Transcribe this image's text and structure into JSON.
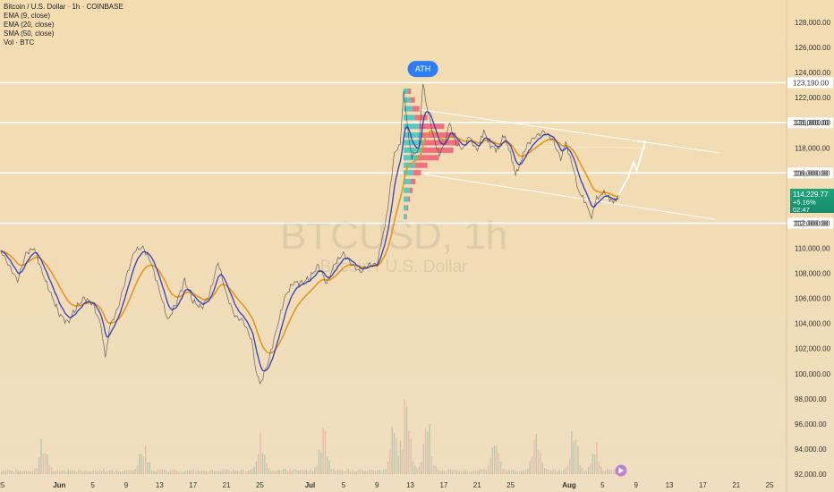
{
  "legend": {
    "title": "Bitcoin / U.S. Dollar · 1h · COINBASE",
    "ema9": "EMA (9, close)",
    "ema20": "EMA (20, close)",
    "sma50": "SMA (50, close)",
    "vol": "Vol · BTC"
  },
  "watermark": {
    "symbol": "BTCUSD, 1h",
    "name": "Bitcoin / U.S. Dollar"
  },
  "ath_label": "ATH",
  "price_tag": {
    "price": "114,229.77",
    "change": "+5.16%",
    "countdown": "02:47"
  },
  "levels": [
    {
      "value": 123190,
      "label": "123,190.00"
    },
    {
      "value": 120000,
      "label": "120,000.00"
    },
    {
      "value": 116000,
      "label": "116,000.00"
    },
    {
      "value": 112000,
      "label": "112,000.00"
    }
  ],
  "colors": {
    "background": "#f3dcb0",
    "price_line": "#3a3a3a",
    "ema9": "#2f3fc8",
    "ema20": "#e8951c",
    "level_line": "#ffffff",
    "profile_cyan": "#2ec4c4",
    "profile_red": "#ef4c6a",
    "ath_badge": "#2e7cf6",
    "price_tag": "#1e9e78"
  },
  "chart_data": {
    "type": "line",
    "title": "Bitcoin / U.S. Dollar · 1h · COINBASE",
    "xlabel": "",
    "ylabel": "",
    "ylim": [
      91000,
      129000
    ],
    "y_ticks": [
      92000,
      94000,
      96000,
      98000,
      100000,
      102000,
      104000,
      106000,
      108000,
      110000,
      112000,
      114000,
      116000,
      118000,
      120000,
      122000,
      124000,
      126000,
      128000
    ],
    "y_tick_labels": [
      "92,000.00",
      "94,000.00",
      "96,000.00",
      "98,000.00",
      "100,000.00",
      "102,000.00",
      "104,000.00",
      "106,000.00",
      "108,000.00",
      "110,000.00",
      "112,000.00",
      "114,000.00",
      "116,000.00",
      "118,000.00",
      "120,000.00",
      "122,000.00",
      "124,000.00",
      "126,000.00",
      "128,000.00"
    ],
    "x_ticks": [
      "25",
      "Jun",
      "5",
      "9",
      "13",
      "17",
      "21",
      "25",
      "Jul",
      "5",
      "9",
      "13",
      "17",
      "21",
      "25",
      "Aug",
      "5",
      "9",
      "13",
      "17",
      "21",
      "25"
    ],
    "x_tick_days": [
      -7,
      0,
      4,
      8,
      12,
      16,
      20,
      24,
      30,
      34,
      38,
      42,
      46,
      50,
      54,
      61,
      65,
      69,
      73,
      77,
      81,
      85
    ],
    "xlim_days": [
      -7.1,
      86.7
    ],
    "price_path": [
      [
        -7,
        109800
      ],
      [
        -6,
        108600
      ],
      [
        -5,
        107400
      ],
      [
        -4,
        109600
      ],
      [
        -3,
        110000
      ],
      [
        -2,
        108000
      ],
      [
        -1,
        106300
      ],
      [
        0,
        104800
      ],
      [
        1,
        104000
      ],
      [
        2,
        105300
      ],
      [
        3,
        106000
      ],
      [
        4,
        105600
      ],
      [
        5,
        103800
      ],
      [
        5.5,
        101200
      ],
      [
        6,
        103700
      ],
      [
        7,
        105200
      ],
      [
        8,
        107700
      ],
      [
        9,
        109800
      ],
      [
        10,
        110100
      ],
      [
        11,
        108800
      ],
      [
        12,
        106600
      ],
      [
        13,
        104200
      ],
      [
        14,
        105700
      ],
      [
        15,
        107400
      ],
      [
        16,
        105800
      ],
      [
        17,
        105200
      ],
      [
        18,
        106400
      ],
      [
        19,
        108900
      ],
      [
        20,
        106300
      ],
      [
        21,
        104600
      ],
      [
        22,
        104200
      ],
      [
        23,
        102700
      ],
      [
        23.5,
        100400
      ],
      [
        24,
        99100
      ],
      [
        25,
        100900
      ],
      [
        26,
        103600
      ],
      [
        27,
        106100
      ],
      [
        28,
        107300
      ],
      [
        29,
        107200
      ],
      [
        30,
        107700
      ],
      [
        31,
        108600
      ],
      [
        32,
        107200
      ],
      [
        33,
        108800
      ],
      [
        34,
        109600
      ],
      [
        35,
        108700
      ],
      [
        36,
        108100
      ],
      [
        37,
        108700
      ],
      [
        38,
        108700
      ],
      [
        38.6,
        110600
      ],
      [
        39.3,
        113100
      ],
      [
        40.1,
        117700
      ],
      [
        40.8,
        118100
      ],
      [
        41.2,
        122800
      ],
      [
        41.7,
        119300
      ],
      [
        42.2,
        117300
      ],
      [
        43,
        117900
      ],
      [
        43.5,
        123100
      ],
      [
        44,
        121300
      ],
      [
        44.8,
        118800
      ],
      [
        45.5,
        117400
      ],
      [
        46,
        118200
      ],
      [
        46.7,
        119900
      ],
      [
        47.5,
        118300
      ],
      [
        48.3,
        117900
      ],
      [
        49,
        118900
      ],
      [
        50,
        117800
      ],
      [
        50.8,
        119300
      ],
      [
        51.6,
        118200
      ],
      [
        52.4,
        117800
      ],
      [
        53.2,
        119000
      ],
      [
        54,
        117600
      ],
      [
        54.6,
        115800
      ],
      [
        55.2,
        116900
      ],
      [
        56,
        118300
      ],
      [
        57,
        118900
      ],
      [
        58,
        119300
      ],
      [
        59,
        118700
      ],
      [
        60,
        117100
      ],
      [
        60.6,
        118400
      ],
      [
        61.4,
        116600
      ],
      [
        62.1,
        114700
      ],
      [
        63,
        113500
      ],
      [
        63.7,
        112600
      ],
      [
        64.3,
        113900
      ],
      [
        65,
        114500
      ],
      [
        65.7,
        114100
      ],
      [
        66.3,
        113600
      ],
      [
        66.9,
        114229
      ]
    ],
    "projection_path": [
      [
        66.9,
        114229
      ],
      [
        68.1,
        115700
      ],
      [
        68.7,
        116900
      ],
      [
        69.1,
        116200
      ],
      [
        70.1,
        118500
      ],
      [
        70.8,
        117900
      ]
    ],
    "channel_upper": [
      [
        42.7,
        121100
      ],
      [
        79,
        117600
      ]
    ],
    "channel_lower": [
      [
        43.6,
        115900
      ],
      [
        78.5,
        112300
      ]
    ],
    "channel_mid": [
      [
        43.6,
        118100
      ],
      [
        70.5,
        118000
      ]
    ],
    "ath": {
      "x_day": 43.5,
      "y": 124000
    },
    "volume_peaks": [
      [
        -2,
        0.45
      ],
      [
        10,
        0.38
      ],
      [
        24,
        0.47
      ],
      [
        31.5,
        0.55
      ],
      [
        40,
        0.66
      ],
      [
        41.5,
        1.0
      ],
      [
        44,
        0.75
      ],
      [
        52,
        0.55
      ],
      [
        57,
        0.48
      ],
      [
        61.5,
        0.62
      ],
      [
        64,
        0.4
      ]
    ],
    "volume_profile": [
      [
        122500,
        0.18,
        0.08
      ],
      [
        121800,
        0.28,
        0.12
      ],
      [
        121100,
        0.35,
        0.2
      ],
      [
        120400,
        0.45,
        0.35
      ],
      [
        119700,
        0.62,
        0.7
      ],
      [
        119000,
        0.72,
        0.95
      ],
      [
        118400,
        0.8,
        1.0
      ],
      [
        117800,
        0.7,
        0.9
      ],
      [
        117200,
        0.55,
        0.6
      ],
      [
        116600,
        0.45,
        0.35
      ],
      [
        116000,
        0.38,
        0.22
      ],
      [
        115300,
        0.3,
        0.12
      ],
      [
        114600,
        0.24,
        0.08
      ],
      [
        113900,
        0.18,
        0.05
      ],
      [
        113200,
        0.14,
        0.03
      ],
      [
        112500,
        0.1,
        0.02
      ]
    ]
  }
}
